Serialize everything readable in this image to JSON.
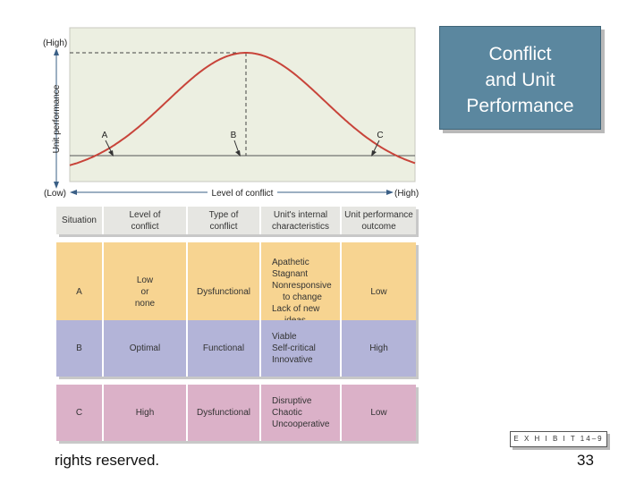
{
  "graph": {
    "y_axis_label": "Unit performance",
    "y_high": "(High)",
    "y_low": "(Low)",
    "x_axis_label": "Level of conflict",
    "x_high": "(High)",
    "point_labels": [
      "A",
      "B",
      "C"
    ],
    "colors": {
      "plot_bg": "#ecefe1",
      "curve": "#c8443a"
    }
  },
  "chart_data": {
    "type": "line",
    "title": "",
    "xlabel": "Level of conflict",
    "ylabel": "Unit performance",
    "series": [
      {
        "shape": "bell-curve"
      }
    ],
    "points": [
      {
        "label": "A",
        "level": "low",
        "performance": "low"
      },
      {
        "label": "B",
        "level": "optimal",
        "performance": "high"
      },
      {
        "label": "C",
        "level": "high",
        "performance": "low"
      }
    ]
  },
  "title": [
    "Conflict",
    "and Unit",
    "Performance"
  ],
  "table": {
    "headers": [
      [
        "Situation"
      ],
      [
        "Level of",
        "conflict"
      ],
      [
        "Type of",
        "conflict"
      ],
      [
        "Unit's internal",
        "characteristics"
      ],
      [
        "Unit performance",
        "outcome"
      ]
    ],
    "rows": [
      {
        "situation": "A",
        "level": [
          "Low",
          "or",
          "none"
        ],
        "type": "Dysfunctional",
        "characteristics": [
          "Apathetic",
          "Stagnant",
          "Nonresponsive",
          "to change",
          "Lack of new",
          "ideas"
        ],
        "outcome": "Low"
      },
      {
        "situation": "B",
        "level": [
          "Optimal"
        ],
        "type": "Functional",
        "characteristics": [
          "Viable",
          "Self-critical",
          "Innovative"
        ],
        "outcome": "High"
      },
      {
        "situation": "C",
        "level": [
          "High"
        ],
        "type": "Dysfunctional",
        "characteristics": [
          "Disruptive",
          "Chaotic",
          "Uncooperative"
        ],
        "outcome": "Low"
      }
    ]
  },
  "exhibit": "E X H I B I T 14–9",
  "footer": {
    "left": "rights reserved.",
    "page": "33"
  }
}
